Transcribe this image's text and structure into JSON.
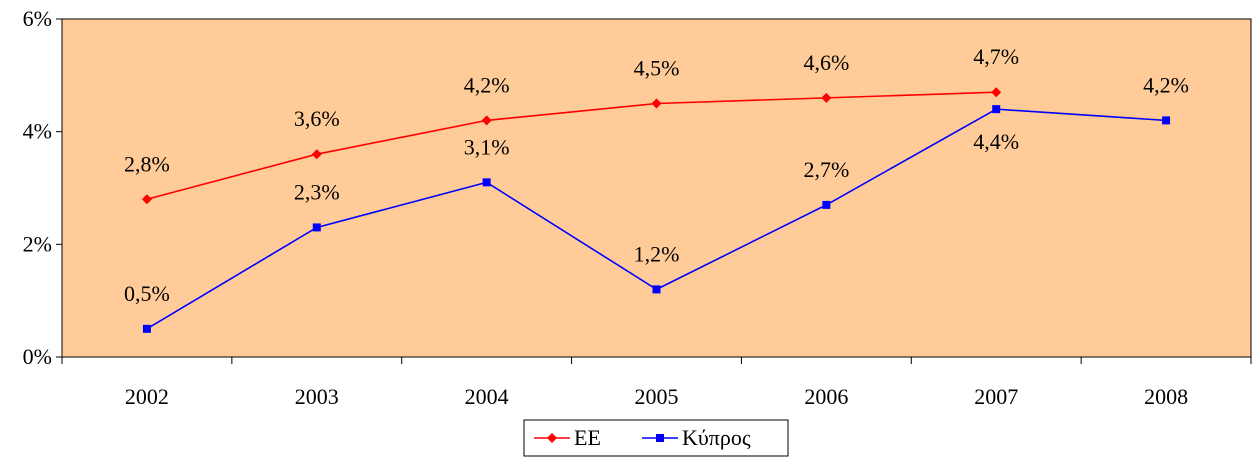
{
  "chart_data": {
    "type": "line",
    "title": "",
    "xlabel": "",
    "ylabel": "",
    "categories": [
      "2002",
      "2003",
      "2004",
      "2005",
      "2006",
      "2007",
      "2008"
    ],
    "ylim": [
      0,
      6
    ],
    "yticks": [
      0,
      2,
      4,
      6
    ],
    "ytick_labels": [
      "0%",
      "2%",
      "4%",
      "6%"
    ],
    "plot_background": "#FFCC99",
    "grid": false,
    "legend_position": "bottom-center",
    "series": [
      {
        "name": "ΕΕ",
        "color": "#FF0000",
        "marker": "diamond",
        "values": [
          2.8,
          3.6,
          4.2,
          4.5,
          4.6,
          4.7,
          null
        ],
        "labels": [
          "2,8%",
          "3,6%",
          "4,2%",
          "4,5%",
          "4,6%",
          "4,7%",
          null
        ]
      },
      {
        "name": "Κύπρος",
        "color": "#0000FF",
        "marker": "square",
        "values": [
          0.5,
          2.3,
          3.1,
          1.2,
          2.7,
          4.4,
          4.2
        ],
        "labels": [
          "0,5%",
          "2,3%",
          "3,1%",
          "1,2%",
          "2,7%",
          "4,4%",
          "4,2%"
        ]
      }
    ]
  }
}
